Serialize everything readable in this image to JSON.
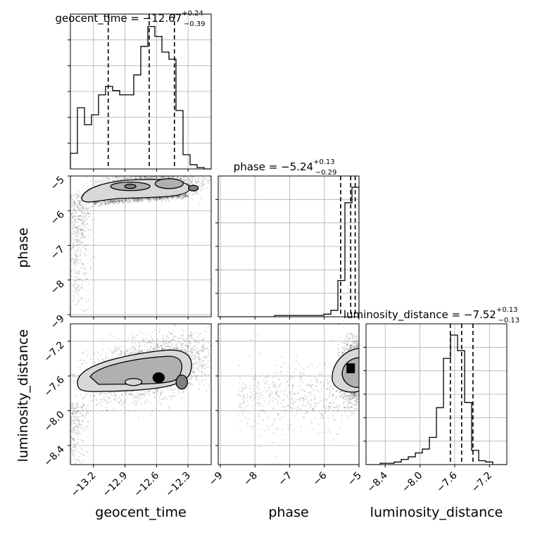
{
  "chart_data": {
    "type": "corner",
    "grid": true,
    "colors": {
      "line": "#000000",
      "grid": "#b0b0b0",
      "scatter": "#000000",
      "fill_light": "#d8d8d8",
      "fill_mid": "#b0b0b0",
      "fill_dark": "#808080"
    },
    "parameters": [
      {
        "name": "geocent_time",
        "title_prefix": "geocent_time = −12.67",
        "title_sup": "+0.24",
        "title_sub": "−0.39",
        "xlabel": "geocent_time",
        "range": [
          -13.42,
          -12.08
        ],
        "ticks": [
          -13.2,
          -12.9,
          -12.6,
          -12.3
        ],
        "tick_labels": [
          "−13.2",
          "−12.9",
          "−12.6",
          "−12.3"
        ],
        "quantiles": [
          -13.06,
          -12.67,
          -12.43
        ],
        "hist_edges": [
          -13.42,
          -13.353,
          -13.286,
          -13.219,
          -13.152,
          -13.085,
          -13.018,
          -12.951,
          -12.884,
          -12.817,
          -12.75,
          -12.683,
          -12.616,
          -12.549,
          -12.482,
          -12.415,
          -12.348,
          -12.281,
          -12.214,
          -12.147,
          -12.08
        ],
        "hist_counts": [
          0.11,
          0.43,
          0.31,
          0.38,
          0.52,
          0.58,
          0.55,
          0.52,
          0.52,
          0.66,
          0.86,
          1.0,
          0.93,
          0.82,
          0.77,
          0.41,
          0.1,
          0.03,
          0.01,
          0.0
        ]
      },
      {
        "name": "phase",
        "title_prefix": "phase = −5.24",
        "title_sup": "+0.13",
        "title_sub": "−0.29",
        "ylabel": "phase",
        "xlabel": "phase",
        "range": [
          -9.06,
          -5.0
        ],
        "ticks": [
          -9,
          -8,
          -7,
          -6,
          -5
        ],
        "tick_labels": [
          "−9",
          "−8",
          "−7",
          "−6",
          "−5"
        ],
        "quantiles": [
          -5.53,
          -5.24,
          -5.11
        ],
        "hist_edges": [
          -9.06,
          -8.857,
          -8.654,
          -8.451,
          -8.248,
          -8.045,
          -7.842,
          -7.639,
          -7.436,
          -7.233,
          -7.03,
          -6.827,
          -6.624,
          -6.421,
          -6.218,
          -6.015,
          -5.812,
          -5.609,
          -5.406,
          -5.203,
          -5.0
        ],
        "hist_counts": [
          0.0,
          0.0,
          0.0,
          0.0,
          0.0,
          0.0,
          0.0,
          0.0,
          0.01,
          0.01,
          0.01,
          0.01,
          0.01,
          0.01,
          0.01,
          0.02,
          0.05,
          0.28,
          0.88,
          1.0
        ]
      },
      {
        "name": "luminosity_distance",
        "title_prefix": "luminosity_distance = −7.52",
        "title_sup": "+0.13",
        "title_sub": "−0.13",
        "ylabel": "luminosity_distance",
        "xlabel": "luminosity_distance",
        "range": [
          -8.62,
          -7.0
        ],
        "ticks": [
          -8.4,
          -8.0,
          -7.6,
          -7.2
        ],
        "tick_labels": [
          "−8.4",
          "−8.0",
          "−7.6",
          "−7.2"
        ],
        "quantiles": [
          -7.65,
          -7.52,
          -7.39
        ],
        "hist_edges": [
          -8.62,
          -8.539,
          -8.458,
          -8.377,
          -8.296,
          -8.215,
          -8.134,
          -8.053,
          -7.972,
          -7.891,
          -7.81,
          -7.729,
          -7.648,
          -7.567,
          -7.486,
          -7.405,
          -7.324,
          -7.243,
          -7.162,
          -7.081,
          -7.0
        ],
        "hist_counts": [
          0.0,
          0.0,
          0.01,
          0.01,
          0.02,
          0.04,
          0.06,
          0.09,
          0.12,
          0.21,
          0.44,
          0.82,
          1.0,
          0.88,
          0.48,
          0.11,
          0.03,
          0.02,
          0.0,
          0.0
        ]
      }
    ]
  }
}
